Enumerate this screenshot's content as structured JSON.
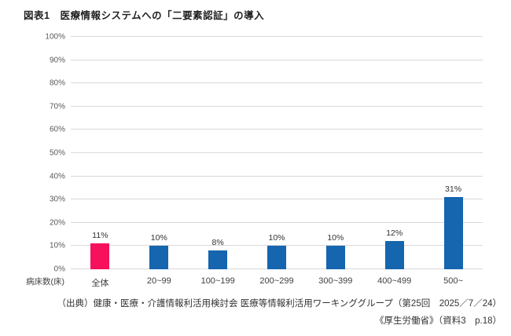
{
  "title": "図表1　医療情報システムへの「二要素認証」の導入",
  "chart_data": {
    "type": "bar",
    "categories": [
      "全体",
      "20~99",
      "100~199",
      "200~299",
      "300~399",
      "400~499",
      "500~"
    ],
    "values": [
      11,
      10,
      8,
      10,
      10,
      12,
      31
    ],
    "value_labels": [
      "11%",
      "10%",
      "8%",
      "10%",
      "10%",
      "12%",
      "31%"
    ],
    "bar_colors": [
      "#f7105c",
      "#1565af",
      "#1565af",
      "#1565af",
      "#1565af",
      "#1565af",
      "#1565af"
    ],
    "title": "図表1　医療情報システムへの「二要素認証」の導入",
    "xlabel": "病床数(床)",
    "ylabel": "",
    "ylim": [
      0,
      100
    ],
    "yticks": [
      "0%",
      "10%",
      "20%",
      "30%",
      "40%",
      "50%",
      "60%",
      "70%",
      "80%",
      "90%",
      "100%"
    ],
    "grid": true,
    "legend": "none"
  },
  "colors": {
    "highlight_bar": "#f7105c",
    "primary_bar": "#1565af",
    "gridline": "#d9d9d9",
    "text": "#404040"
  },
  "source": {
    "line1": "（出典）健康・医療・介護情報利活用検討会 医療等情報利活用ワーキンググループ（第25回　2025／7／24）",
    "line2": "《厚生労働省》（資料3　p.18）"
  }
}
